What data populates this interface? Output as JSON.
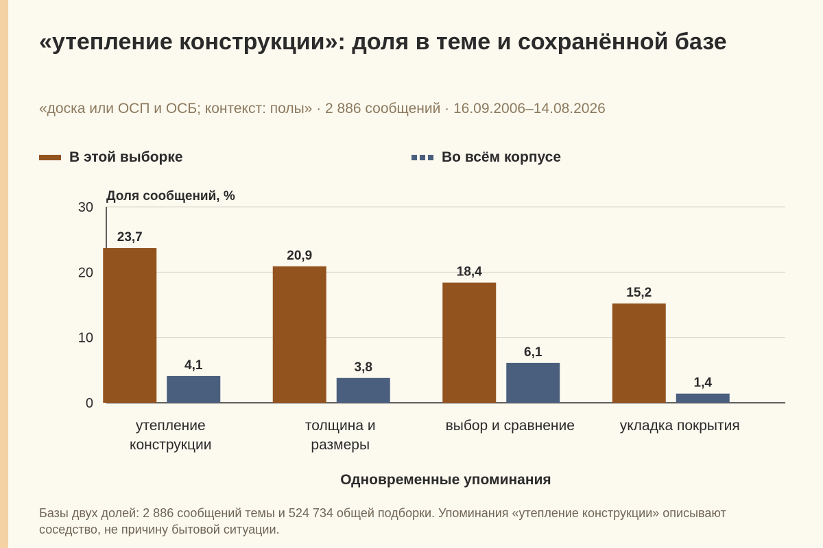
{
  "colors": {
    "accent_strip": "#f4d2a4",
    "series_sample": "#93531f",
    "series_corpus": "#4a5f7e",
    "grid": "#d8d4c8",
    "background": "#fcf9ef"
  },
  "title": "«утепление конструкции»: доля в теме и сохранённой базе",
  "subtitle": "«доска или ОСП и ОСБ; контекст: полы» · 2 886 сообщений · 16.09.2006–14.08.2026",
  "legend": [
    {
      "label": "В этой выборке",
      "color": "#93531f",
      "style": "solid"
    },
    {
      "label": "Во всём корпусе",
      "color": "#4a5f7e",
      "style": "dashed"
    }
  ],
  "footnote": "Базы двух долей: 2 886 сообщений темы и 524 734 общей подборки. Упоминания «утепление конструкции» описывают соседство, не причину бытовой ситуации.",
  "chart_data": {
    "type": "bar",
    "ylabel": "Доля сообщений, %",
    "xlabel": "Одновременные упоминания",
    "ylim": [
      0,
      30
    ],
    "yticks": [
      0,
      10,
      20,
      30
    ],
    "grid": true,
    "legend_position": "top",
    "categories": [
      [
        "утепление",
        "конструкции"
      ],
      [
        "толщина и",
        "размеры"
      ],
      [
        "выбор и сравнение"
      ],
      [
        "укладка покрытия"
      ]
    ],
    "series": [
      {
        "name": "В этой выборке",
        "color": "#93531f",
        "values": [
          23.7,
          20.9,
          18.4,
          15.2
        ],
        "labels": [
          "23,7",
          "20,9",
          "18,4",
          "15,2"
        ]
      },
      {
        "name": "Во всём корпусе",
        "color": "#4a5f7e",
        "values": [
          4.1,
          3.8,
          6.1,
          1.4
        ],
        "labels": [
          "4,1",
          "3,8",
          "6,1",
          "1,4"
        ]
      }
    ]
  }
}
